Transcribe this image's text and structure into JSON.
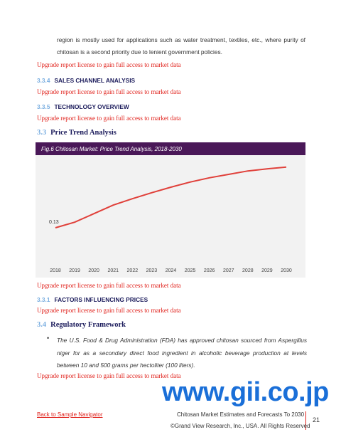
{
  "blocks": [
    {
      "text": "region is mostly used for applications such as water treatment, textiles, etc., where purity of chitosan is a second priority due to lenient government policies."
    },
    {
      "notice": "Upgrade report license to gain full access to market data"
    },
    {
      "number": "3.3.4",
      "title": "SALES CHANNEL ANALYSIS"
    },
    {
      "notice": "Upgrade report license to gain full access to market data"
    },
    {
      "number": "3.3.5",
      "title": "TECHNOLOGY OVERVIEW"
    },
    {
      "notice": "Upgrade report license to gain full access to market data"
    },
    {
      "number": "3.3",
      "title": "Price Trend Analysis"
    },
    {
      "notice": "Upgrade report license to gain full access to market data"
    },
    {
      "number": "3.3.1",
      "title": "FACTORS INFLUENCING PRICES"
    },
    {
      "notice": "Upgrade report license to gain full access to market data"
    },
    {
      "number": "3.4",
      "title": "Regulatory Framework"
    },
    {
      "bullet": "The U.S. Food & Drug Administration (FDA) has approved chitosan sourced from Aspergillus niger for as a secondary direct food ingredient in alcoholic beverage production at levels between 10 and 500 grams per hectoliter (100 liters)."
    },
    {
      "notice": "Upgrade report license to gain full access to market data"
    }
  ],
  "chart_data": {
    "type": "line",
    "title": "Fig.6 Chitosan Market: Price Trend Analysis, 2018-2030",
    "categories": [
      "2018",
      "2019",
      "2020",
      "2021",
      "2022",
      "2023",
      "2024",
      "2025",
      "2026",
      "2027",
      "2028",
      "2029",
      "2030"
    ],
    "values": [
      0.13,
      0.143,
      0.163,
      0.183,
      0.198,
      0.212,
      0.225,
      0.237,
      0.247,
      0.255,
      0.263,
      0.268,
      0.272
    ],
    "color": "#e0403a",
    "ylim": [
      0.05,
      0.3
    ]
  },
  "watermark": "www.gii.co.jp",
  "footer": {
    "link": "Back to Sample Navigator",
    "report_title": "Chitosan Market Estimates and Forecasts To 2030",
    "page_number": "21",
    "copyright": "©Grand View Research, Inc., USA. All Rights Reserved"
  }
}
